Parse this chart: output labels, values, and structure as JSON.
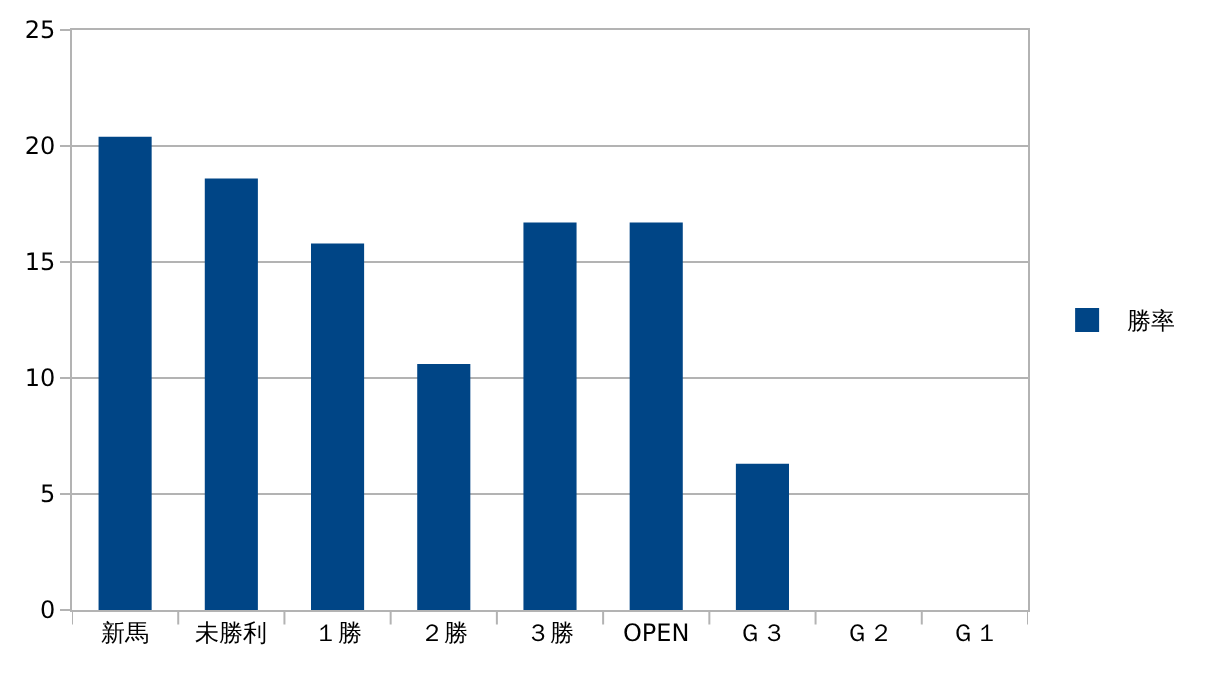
{
  "chart_data": {
    "type": "bar",
    "categories": [
      "新馬",
      "未勝利",
      "１勝",
      "２勝",
      "３勝",
      "OPEN",
      "Ｇ３",
      "Ｇ２",
      "Ｇ１"
    ],
    "series": [
      {
        "name": "勝率",
        "color": "#004586",
        "values": [
          20.4,
          18.6,
          15.8,
          10.6,
          16.7,
          16.7,
          6.3,
          0,
          0
        ]
      }
    ],
    "ylim": [
      0,
      25
    ],
    "yticks": [
      0,
      5,
      10,
      15,
      20,
      25
    ],
    "grid": "y",
    "legend": "right"
  }
}
